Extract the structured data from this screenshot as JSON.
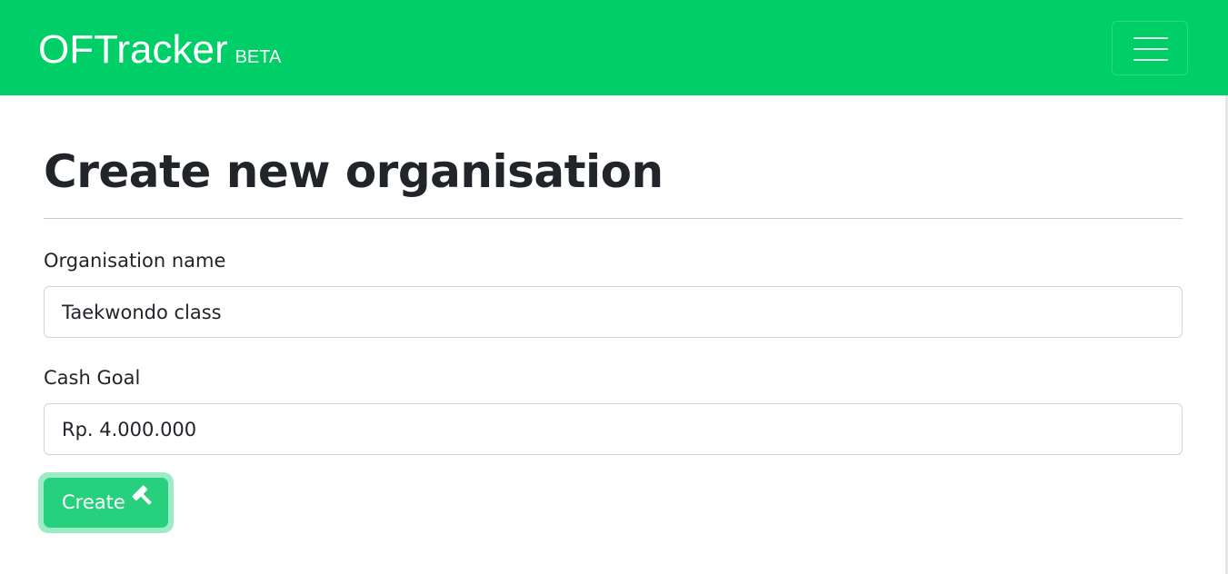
{
  "navbar": {
    "brand": "OFTracker",
    "badge": "BETA",
    "bg_color": "#00cf68",
    "menu_icon": "hamburger-menu-icon"
  },
  "page": {
    "title": "Create new organisation"
  },
  "form": {
    "org_name_label": "Organisation name",
    "org_name_value": "Taekwondo class",
    "cash_goal_label": "Cash Goal",
    "cash_goal_value": "Rp. 4.000.000",
    "submit_label": "Create",
    "submit_icon": "hammer-icon",
    "submit_color": "#26d07c"
  }
}
